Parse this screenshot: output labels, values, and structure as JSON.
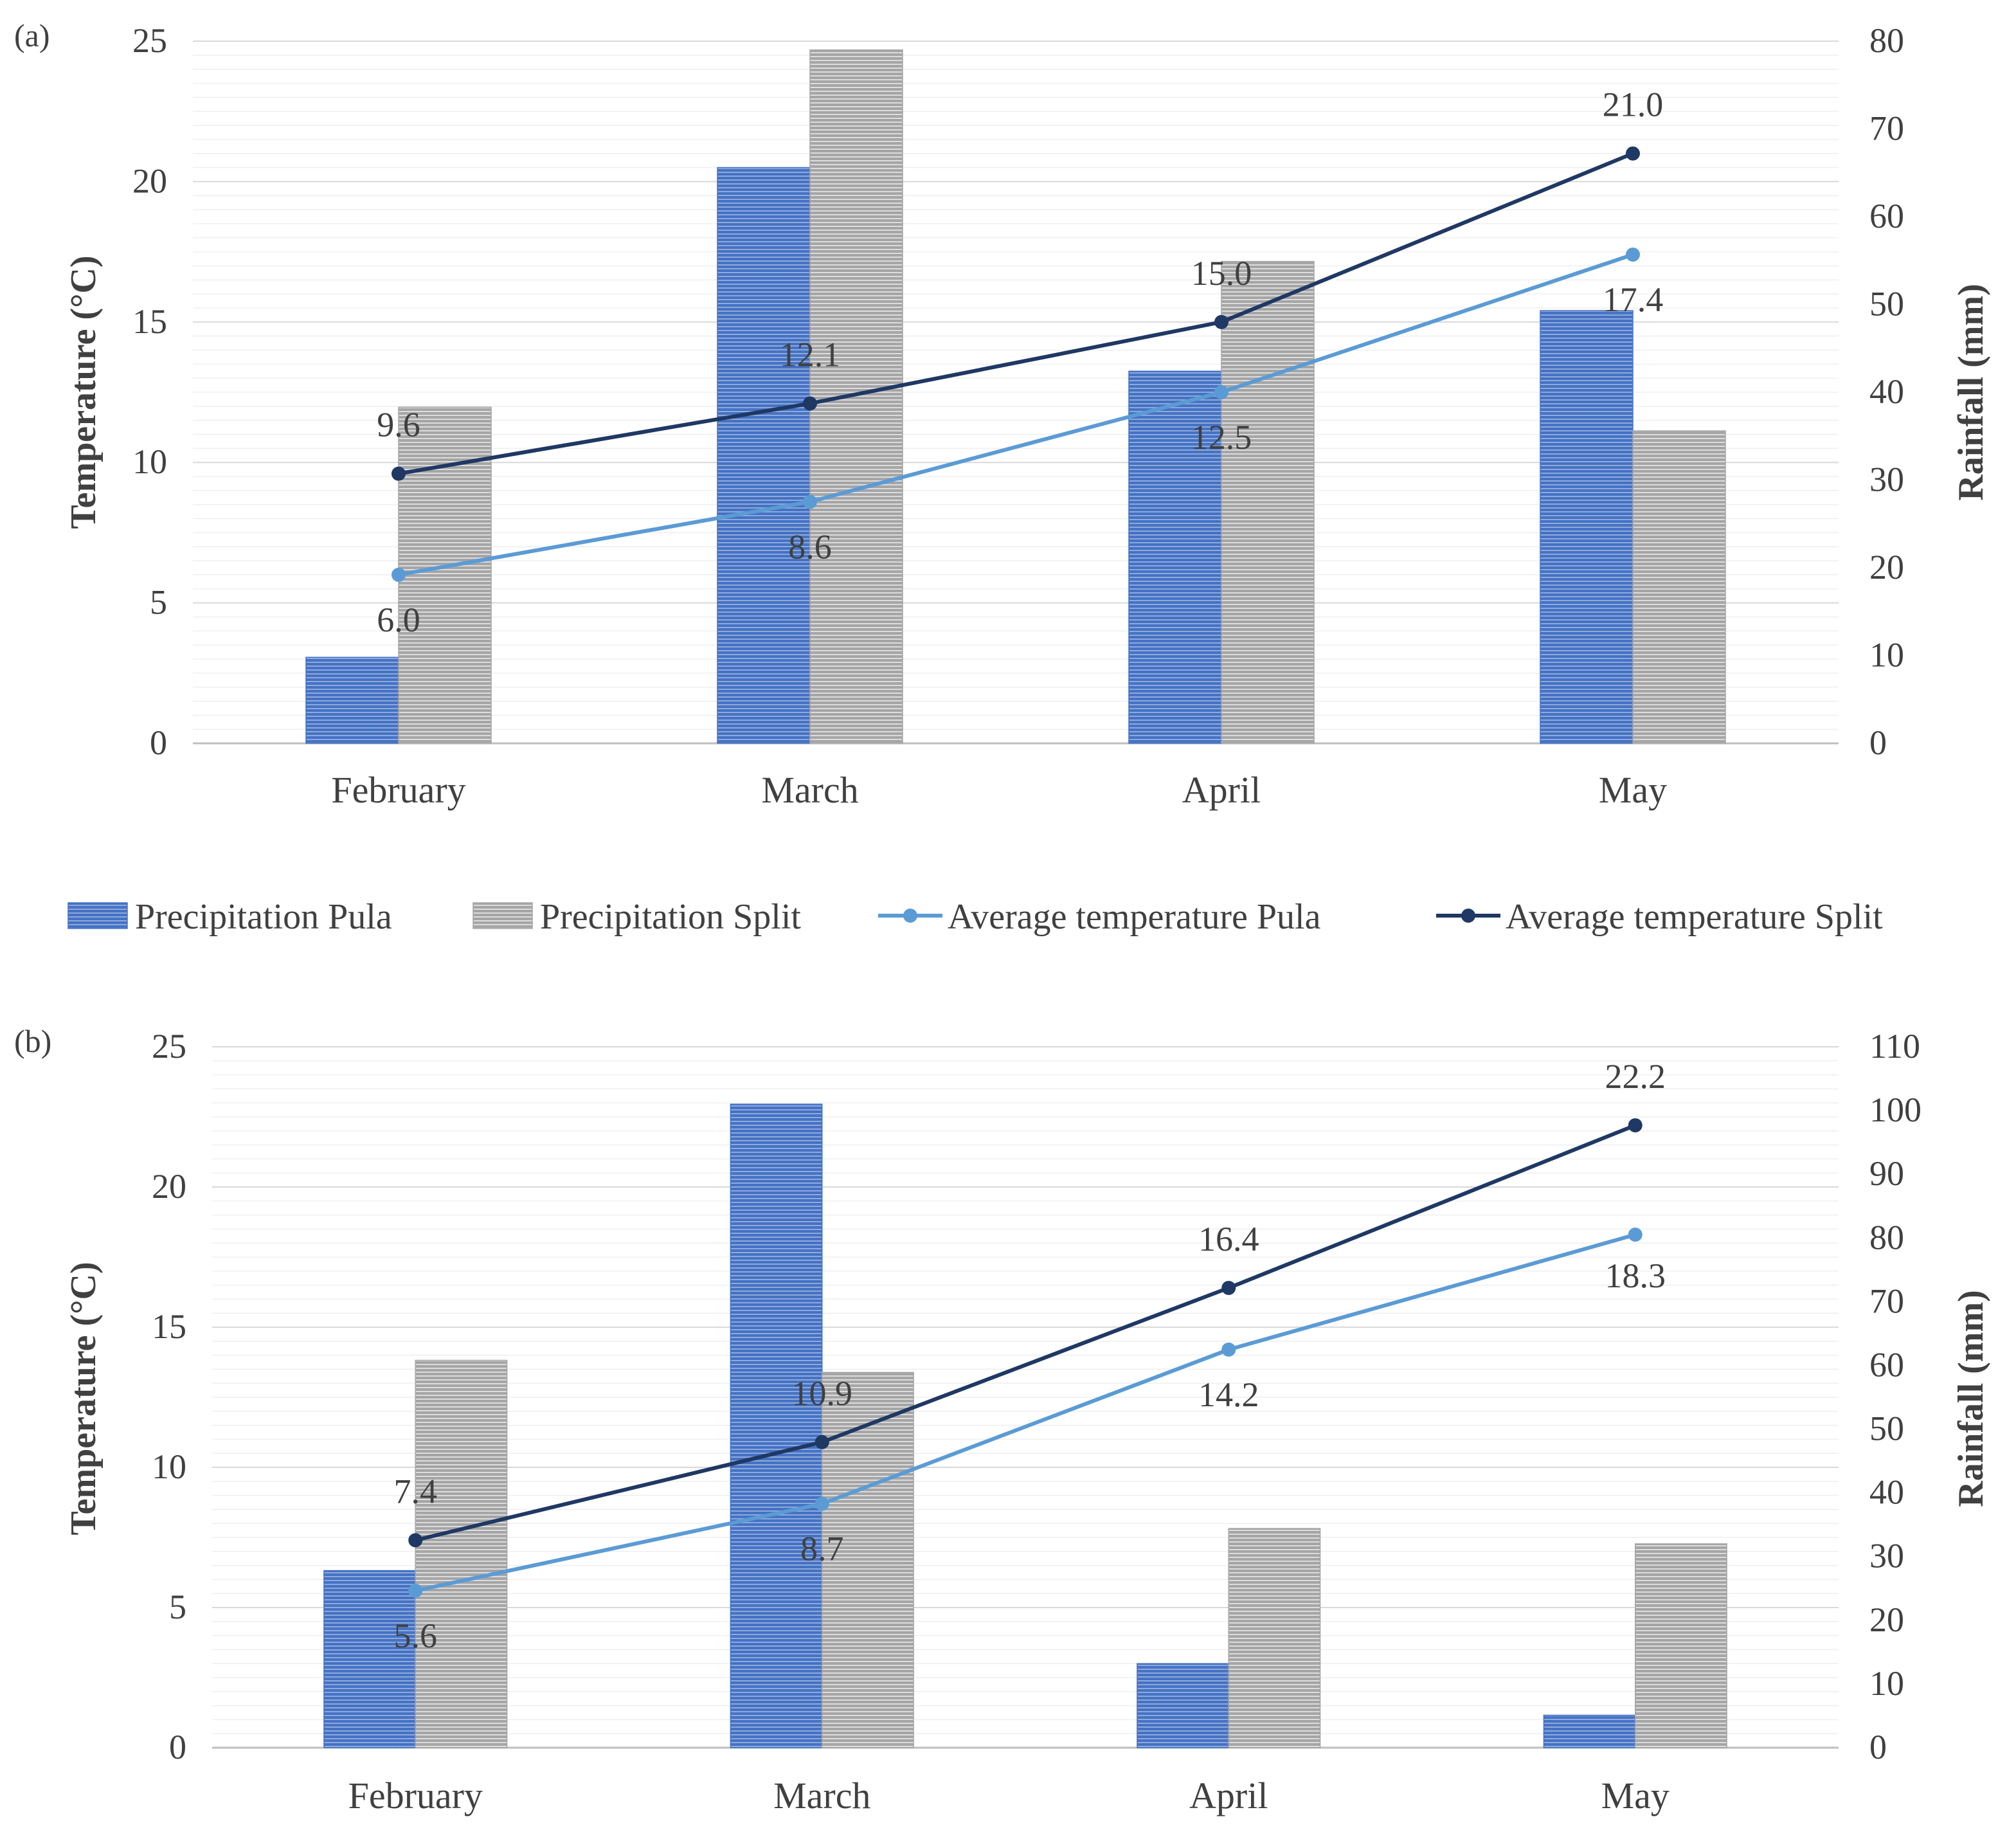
{
  "legend": {
    "items": [
      {
        "label": "Precipitation Pula",
        "kind": "bar",
        "color": "#4472C4"
      },
      {
        "label": "Precipitation Split",
        "kind": "bar",
        "color": "#A5A5A5"
      },
      {
        "label": "Average temperature Pula",
        "kind": "line",
        "color": "#5B9BD5"
      },
      {
        "label": "Average temperature Split",
        "kind": "line",
        "color": "#1F3864"
      }
    ]
  },
  "chart_data": [
    {
      "type": "bar",
      "panel_label": "(a)",
      "categories": [
        "February",
        "March",
        "April",
        "May"
      ],
      "y_left": {
        "label": "Temperature (°C)",
        "range": [
          0,
          25
        ],
        "ticks": [
          0,
          5,
          10,
          15,
          20,
          25
        ]
      },
      "y_right": {
        "label": "Rainfall (mm)",
        "range": [
          0,
          80
        ],
        "ticks": [
          0,
          10,
          20,
          30,
          40,
          50,
          60,
          70,
          80
        ]
      },
      "grid": true,
      "bar_series": [
        {
          "name": "Precipitation Pula",
          "axis": "right",
          "color": "#4472C4",
          "values": [
            9.8,
            65.6,
            42.4,
            49.3
          ]
        },
        {
          "name": "Precipitation Split",
          "axis": "right",
          "color": "#A5A5A5",
          "values": [
            38.3,
            79.0,
            54.9,
            35.6
          ]
        }
      ],
      "line_series": [
        {
          "name": "Average temperature Pula",
          "axis": "left",
          "color": "#5B9BD5",
          "values": [
            6.0,
            8.6,
            12.5,
            17.4
          ],
          "labels": [
            "6.0",
            "8.6",
            "12.5",
            "17.4"
          ]
        },
        {
          "name": "Average temperature Split",
          "axis": "left",
          "color": "#1F3864",
          "values": [
            9.6,
            12.1,
            15.0,
            21.0
          ],
          "labels": [
            "9.6",
            "12.1",
            "15.0",
            "21.0"
          ]
        }
      ]
    },
    {
      "type": "bar",
      "panel_label": "(b)",
      "categories": [
        "February",
        "March",
        "April",
        "May"
      ],
      "y_left": {
        "label": "Temperature (°C)",
        "range": [
          0,
          25
        ],
        "ticks": [
          0,
          5,
          10,
          15,
          20,
          25
        ]
      },
      "y_right": {
        "label": "Rainfall (mm)",
        "range": [
          0,
          110
        ],
        "ticks": [
          0,
          10,
          20,
          30,
          40,
          50,
          60,
          70,
          80,
          90,
          100,
          110
        ]
      },
      "grid": true,
      "bar_series": [
        {
          "name": "Precipitation Pula",
          "axis": "right",
          "color": "#4472C4",
          "values": [
            27.8,
            101.0,
            13.2,
            5.1
          ]
        },
        {
          "name": "Precipitation Split",
          "axis": "right",
          "color": "#A5A5A5",
          "values": [
            60.8,
            58.9,
            34.4,
            32.0
          ]
        }
      ],
      "line_series": [
        {
          "name": "Average temperature Pula",
          "axis": "left",
          "color": "#5B9BD5",
          "values": [
            5.6,
            8.7,
            14.2,
            18.3
          ],
          "labels": [
            "5.6",
            "8.7",
            "14.2",
            "18.3"
          ]
        },
        {
          "name": "Average temperature Split",
          "axis": "left",
          "color": "#1F3864",
          "values": [
            7.4,
            10.9,
            16.4,
            22.2
          ],
          "labels": [
            "7.4",
            "10.9",
            "16.4",
            "22.2"
          ]
        }
      ]
    }
  ]
}
